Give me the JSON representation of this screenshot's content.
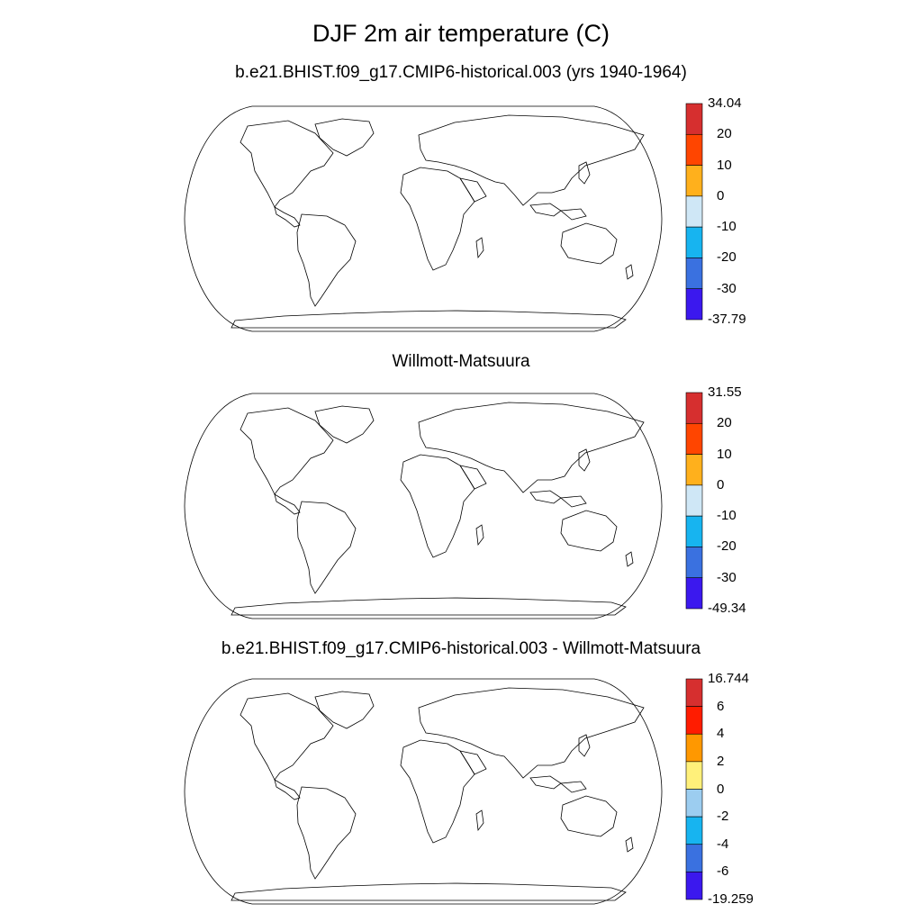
{
  "title": "DJF 2m air temperature (C)",
  "panels": [
    {
      "id": "model",
      "subtitle": "b.e21.BHIST.f09_g17.CMIP6-historical.003 (yrs 1940-1964)",
      "colorbar": {
        "labels": [
          "34.04",
          "20",
          "10",
          "0",
          "-10",
          "-20",
          "-30",
          "-37.79"
        ],
        "colors": [
          "#d62f2f",
          "#ff4500",
          "#ffb01c",
          "#cfe7f6",
          "#17b4f0",
          "#3a71e0",
          "#3b18ee"
        ]
      }
    },
    {
      "id": "obs",
      "subtitle": "Willmott-Matsuura",
      "colorbar": {
        "labels": [
          "31.55",
          "20",
          "10",
          "0",
          "-10",
          "-20",
          "-30",
          "-49.34"
        ],
        "colors": [
          "#d62f2f",
          "#ff4500",
          "#ffb01c",
          "#cfe7f6",
          "#17b4f0",
          "#3a71e0",
          "#3b18ee"
        ]
      }
    },
    {
      "id": "diff",
      "subtitle": "b.e21.BHIST.f09_g17.CMIP6-historical.003 - Willmott-Matsuura",
      "colorbar": {
        "labels": [
          "16.744",
          "6",
          "4",
          "2",
          "0",
          "-2",
          "-4",
          "-6",
          "-19.259"
        ],
        "colors": [
          "#d62f2f",
          "#ff1c00",
          "#ff9800",
          "#fff07a",
          "#9ccdf0",
          "#17b4f0",
          "#3a71e0",
          "#3b18ee"
        ]
      }
    }
  ]
}
